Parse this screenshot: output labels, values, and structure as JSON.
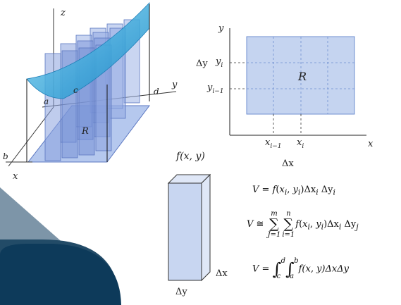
{
  "surface_figure": {
    "labels": {
      "z": "z",
      "y": "y",
      "x": "x",
      "a": "a",
      "b": "b",
      "c": "c",
      "d": "d",
      "R": "R"
    },
    "colors": {
      "surface": "#3aa6d8",
      "column": "#9db3e6",
      "base": "#b5c8ee",
      "outline": "#5a76c0"
    }
  },
  "grid_figure": {
    "labels": {
      "y_axis": "y",
      "x_axis": "x",
      "R": "R",
      "delta_y": "Δy",
      "delta_x": "Δx",
      "y_i": "y",
      "y_i_sub": "i",
      "y_im1": "y",
      "y_im1_sub": "i−1",
      "x_im1": "x",
      "x_im1_sub": "i−1",
      "x_i": "x",
      "x_i_sub": "i"
    },
    "colors": {
      "region": "#c5d4f0",
      "outline": "#6f8fd0"
    }
  },
  "column_figure": {
    "labels": {
      "f": "f(x, y)",
      "delta_x": "Δx",
      "delta_y": "Δy"
    },
    "colors": {
      "fill": "#c8d6f1",
      "edge": "#333333"
    }
  },
  "formulas": {
    "f1": {
      "lhs": "V",
      "eq": "=",
      "f": "f",
      "args_open": "(",
      "xi": "x",
      "xi_sub": "i",
      "comma": ", ",
      "yi": "y",
      "yi_sub": "i",
      "args_close": ")",
      "dx": "Δx",
      "dx_sub": "i",
      "dy": " Δy",
      "dy_sub": "i"
    },
    "f2": {
      "lhs": "V",
      "eq": "≅",
      "sum1_top": "m",
      "sum1_bot": "J=1",
      "sum2_top": "n",
      "sum2_bot": "i=1",
      "sigma": "∑",
      "f": "f",
      "args_open": "(",
      "xi": "x",
      "xi_sub": "i",
      "comma": ", ",
      "yi": "y",
      "yi_sub": "i",
      "args_close": ")",
      "dx": "Δx",
      "dx_sub": "i",
      "dy": " Δy",
      "dy_sub": "j"
    },
    "f3": {
      "lhs": "V",
      "eq": "=",
      "int": "∫",
      "int1_top": "d",
      "int1_bot": "c",
      "int2_top": "b",
      "int2_bot": "a",
      "body": "f(x, y)ΔxΔy"
    }
  },
  "decor": {
    "colors": {
      "gray": "#7d95a8",
      "navy": "#0d3a5a",
      "teal": "#224b67"
    }
  }
}
